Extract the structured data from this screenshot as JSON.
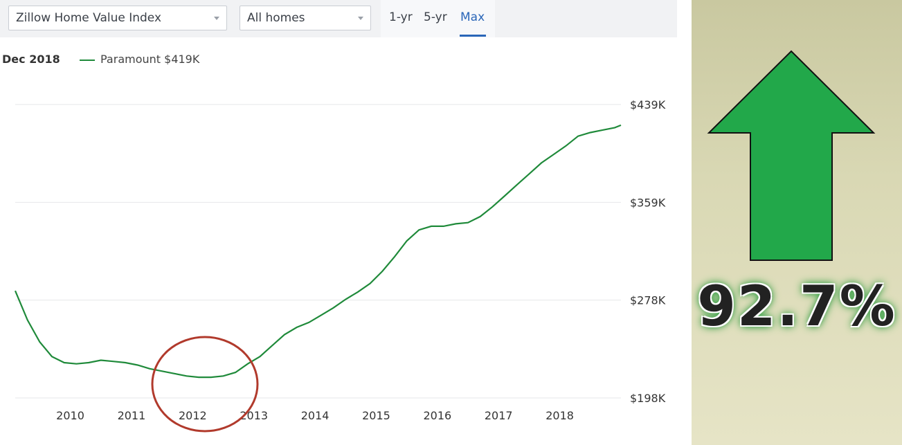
{
  "controls": {
    "metric_select": "Zillow Home Value Index",
    "home_type_select": "All homes",
    "ranges": [
      "1-yr",
      "5-yr",
      "Max"
    ],
    "active_range": "Max"
  },
  "legend": {
    "date": "Dec 2018",
    "entry": "Paramount $419K"
  },
  "annotation": {
    "percent_change": "92.7%",
    "arrow": "up-arrow-icon",
    "arrow_color": "#22a84a",
    "circle_color": "#b13a2c",
    "highlighted_year": 2012
  },
  "chart_data": {
    "type": "line",
    "title": "",
    "xlabel": "",
    "ylabel": "",
    "x_ticks": [
      "2010",
      "2011",
      "2012",
      "2013",
      "2014",
      "2015",
      "2016",
      "2017",
      "2018"
    ],
    "y_ticks": [
      "$198K",
      "$278K",
      "$359K",
      "$439K"
    ],
    "ylim": [
      198,
      439
    ],
    "xlim": [
      2009.1,
      2019.0
    ],
    "grid": true,
    "line_color": "#1f8a3a",
    "series": [
      {
        "name": "Paramount",
        "points": [
          [
            2009.1,
            286
          ],
          [
            2009.3,
            262
          ],
          [
            2009.5,
            244
          ],
          [
            2009.7,
            232
          ],
          [
            2009.9,
            227
          ],
          [
            2010.1,
            226
          ],
          [
            2010.3,
            227
          ],
          [
            2010.5,
            229
          ],
          [
            2010.7,
            228
          ],
          [
            2010.9,
            227
          ],
          [
            2011.1,
            225
          ],
          [
            2011.3,
            222
          ],
          [
            2011.5,
            220
          ],
          [
            2011.7,
            218
          ],
          [
            2011.9,
            216
          ],
          [
            2012.1,
            215
          ],
          [
            2012.3,
            215
          ],
          [
            2012.5,
            216
          ],
          [
            2012.7,
            219
          ],
          [
            2012.9,
            226
          ],
          [
            2013.1,
            232
          ],
          [
            2013.3,
            241
          ],
          [
            2013.5,
            250
          ],
          [
            2013.7,
            256
          ],
          [
            2013.9,
            260
          ],
          [
            2014.1,
            266
          ],
          [
            2014.3,
            272
          ],
          [
            2014.5,
            279
          ],
          [
            2014.7,
            285
          ],
          [
            2014.9,
            292
          ],
          [
            2015.1,
            302
          ],
          [
            2015.3,
            314
          ],
          [
            2015.5,
            327
          ],
          [
            2015.7,
            336
          ],
          [
            2015.9,
            339
          ],
          [
            2016.1,
            339
          ],
          [
            2016.3,
            341
          ],
          [
            2016.5,
            342
          ],
          [
            2016.7,
            347
          ],
          [
            2016.9,
            355
          ],
          [
            2017.1,
            364
          ],
          [
            2017.3,
            373
          ],
          [
            2017.5,
            382
          ],
          [
            2017.7,
            391
          ],
          [
            2017.9,
            398
          ],
          [
            2018.1,
            405
          ],
          [
            2018.3,
            413
          ],
          [
            2018.5,
            416
          ],
          [
            2018.7,
            418
          ],
          [
            2018.9,
            420
          ],
          [
            2019.0,
            422
          ]
        ]
      }
    ]
  }
}
